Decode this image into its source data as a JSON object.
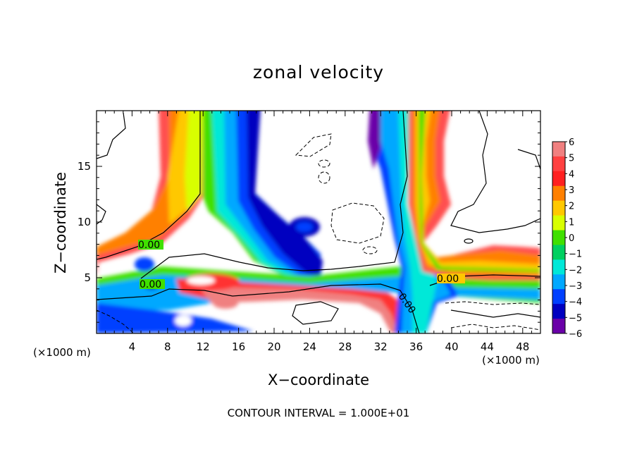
{
  "chart_data": {
    "type": "heatmap",
    "title": "zonal velocity",
    "xlabel": "X−coordinate",
    "ylabel": "Z−coordinate",
    "x_unit_left": "(×1000 m)",
    "x_unit_right": "(×1000 m)",
    "footer": "CONTOUR INTERVAL = 1.000E+01",
    "xlim": [
      0,
      50
    ],
    "ylim": [
      0,
      20
    ],
    "x_ticks": [
      4,
      8,
      12,
      16,
      20,
      24,
      28,
      32,
      36,
      40,
      44,
      48
    ],
    "y_ticks": [
      5,
      10,
      15
    ],
    "colorbar": {
      "levels": [
        6,
        5,
        4,
        3,
        2,
        1,
        0,
        -1,
        -2,
        -3,
        -4,
        -5,
        -6
      ],
      "labels": [
        "6",
        "5",
        "4",
        "3",
        "2",
        "1",
        "0",
        "−1",
        "−2",
        "−3",
        "−4",
        "−5",
        "−6"
      ],
      "colors": [
        "#f08080",
        "#ff4040",
        "#ff2020",
        "#ff8000",
        "#ffc800",
        "#d8ff00",
        "#40e000",
        "#00d060",
        "#00e8d8",
        "#00a8ff",
        "#0040ff",
        "#0000c0",
        "#6a00a8"
      ]
    },
    "contour_labels": [
      "0.00",
      "0.00",
      "0.00",
      "0.00"
    ]
  }
}
